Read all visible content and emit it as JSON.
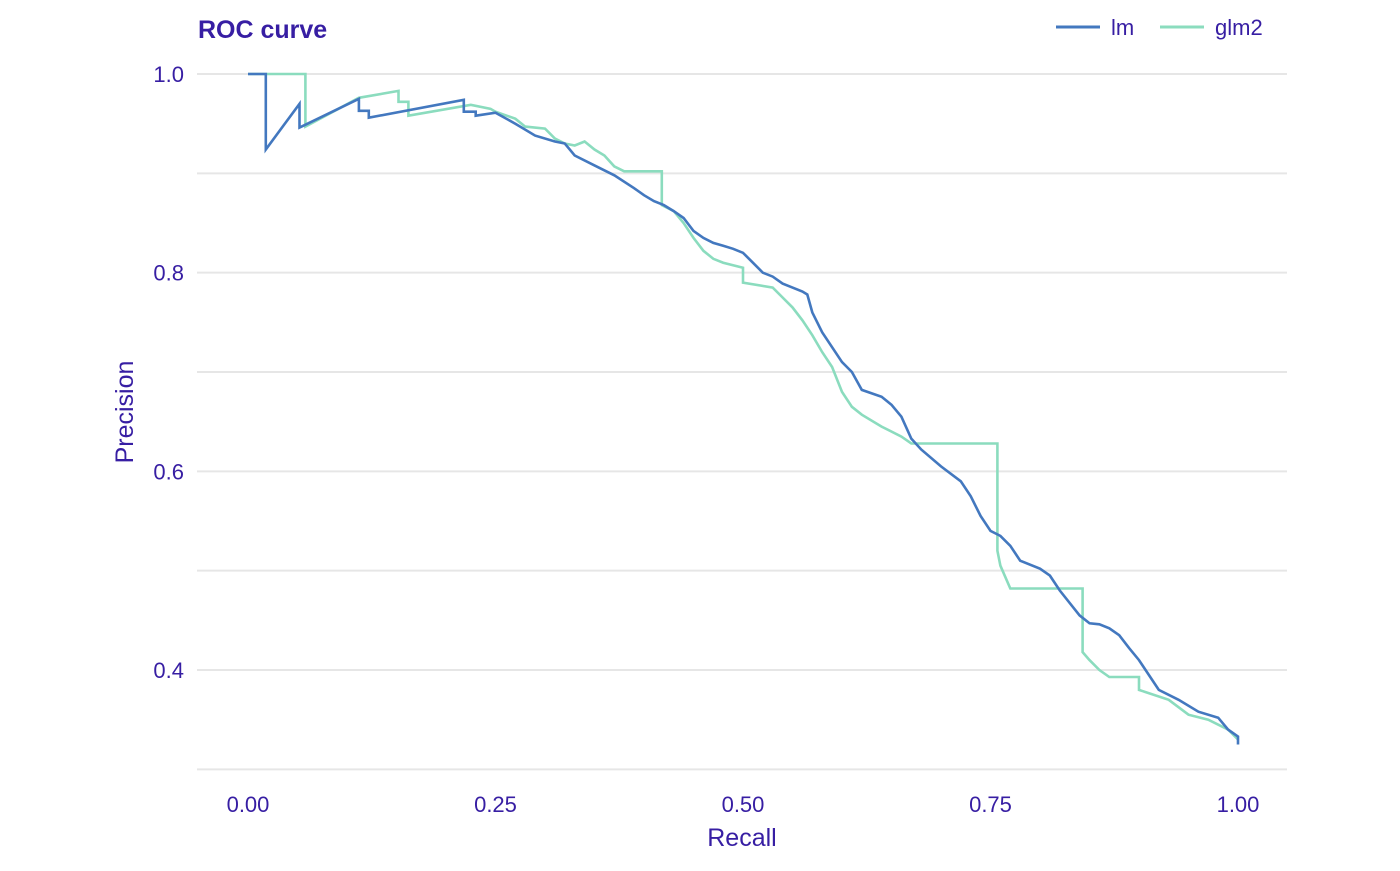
{
  "chart_data": {
    "type": "line",
    "title": "ROC curve",
    "xlabel": "Recall",
    "ylabel": "Precision",
    "xlim": [
      -0.05,
      1.05
    ],
    "ylim": [
      0.3,
      1.03
    ],
    "x_ticks": [
      0,
      0.25,
      0.5,
      0.75,
      1
    ],
    "x_tick_labels": [
      "0.00",
      "0.25",
      "0.50",
      "0.75",
      "1.00"
    ],
    "y_ticks": [
      0.4,
      0.6,
      0.8,
      1.0
    ],
    "y_tick_labels": [
      "0.4",
      "0.6",
      "0.8",
      "1.0"
    ],
    "y_minor_gridlines": [
      0.3,
      0.5,
      0.7,
      0.9
    ],
    "grid": "horizontal",
    "legend_position": "top-right",
    "colors": {
      "text": "#371ea3",
      "grid": "#e6e6e6"
    },
    "series": [
      {
        "name": "lm",
        "color": "#4378bf",
        "points": [
          [
            0.0,
            1.0
          ],
          [
            0.018,
            1.0
          ],
          [
            0.018,
            0.924
          ],
          [
            0.052,
            0.97
          ],
          [
            0.052,
            0.946
          ],
          [
            0.112,
            0.975
          ],
          [
            0.112,
            0.963
          ],
          [
            0.122,
            0.963
          ],
          [
            0.122,
            0.956
          ],
          [
            0.218,
            0.974
          ],
          [
            0.218,
            0.962
          ],
          [
            0.23,
            0.962
          ],
          [
            0.23,
            0.958
          ],
          [
            0.25,
            0.961
          ],
          [
            0.27,
            0.95
          ],
          [
            0.29,
            0.938
          ],
          [
            0.31,
            0.932
          ],
          [
            0.32,
            0.93
          ],
          [
            0.33,
            0.918
          ],
          [
            0.35,
            0.908
          ],
          [
            0.37,
            0.898
          ],
          [
            0.39,
            0.885
          ],
          [
            0.4,
            0.878
          ],
          [
            0.41,
            0.872
          ],
          [
            0.42,
            0.868
          ],
          [
            0.43,
            0.862
          ],
          [
            0.44,
            0.855
          ],
          [
            0.45,
            0.842
          ],
          [
            0.46,
            0.835
          ],
          [
            0.47,
            0.83
          ],
          [
            0.48,
            0.827
          ],
          [
            0.49,
            0.824
          ],
          [
            0.5,
            0.82
          ],
          [
            0.51,
            0.81
          ],
          [
            0.52,
            0.8
          ],
          [
            0.53,
            0.796
          ],
          [
            0.54,
            0.789
          ],
          [
            0.55,
            0.785
          ],
          [
            0.56,
            0.781
          ],
          [
            0.565,
            0.778
          ],
          [
            0.57,
            0.76
          ],
          [
            0.58,
            0.74
          ],
          [
            0.6,
            0.71
          ],
          [
            0.61,
            0.7
          ],
          [
            0.62,
            0.682
          ],
          [
            0.64,
            0.675
          ],
          [
            0.65,
            0.667
          ],
          [
            0.66,
            0.655
          ],
          [
            0.67,
            0.633
          ],
          [
            0.68,
            0.622
          ],
          [
            0.7,
            0.605
          ],
          [
            0.72,
            0.59
          ],
          [
            0.73,
            0.575
          ],
          [
            0.74,
            0.555
          ],
          [
            0.75,
            0.54
          ],
          [
            0.76,
            0.535
          ],
          [
            0.77,
            0.525
          ],
          [
            0.78,
            0.51
          ],
          [
            0.8,
            0.502
          ],
          [
            0.81,
            0.495
          ],
          [
            0.82,
            0.48
          ],
          [
            0.84,
            0.455
          ],
          [
            0.85,
            0.447
          ],
          [
            0.86,
            0.446
          ],
          [
            0.87,
            0.442
          ],
          [
            0.88,
            0.435
          ],
          [
            0.89,
            0.422
          ],
          [
            0.9,
            0.41
          ],
          [
            0.91,
            0.395
          ],
          [
            0.92,
            0.38
          ],
          [
            0.94,
            0.37
          ],
          [
            0.96,
            0.358
          ],
          [
            0.98,
            0.352
          ],
          [
            0.99,
            0.34
          ],
          [
            1.0,
            0.333
          ],
          [
            1.0,
            0.325
          ]
        ]
      },
      {
        "name": "glm2",
        "color": "#8bdcbe",
        "points": [
          [
            0.0,
            1.0
          ],
          [
            0.058,
            1.0
          ],
          [
            0.058,
            0.947
          ],
          [
            0.112,
            0.976
          ],
          [
            0.152,
            0.983
          ],
          [
            0.152,
            0.972
          ],
          [
            0.162,
            0.972
          ],
          [
            0.162,
            0.958
          ],
          [
            0.225,
            0.969
          ],
          [
            0.245,
            0.965
          ],
          [
            0.25,
            0.962
          ],
          [
            0.27,
            0.955
          ],
          [
            0.28,
            0.947
          ],
          [
            0.3,
            0.945
          ],
          [
            0.31,
            0.935
          ],
          [
            0.32,
            0.93
          ],
          [
            0.33,
            0.928
          ],
          [
            0.34,
            0.932
          ],
          [
            0.35,
            0.924
          ],
          [
            0.36,
            0.918
          ],
          [
            0.37,
            0.907
          ],
          [
            0.38,
            0.902
          ],
          [
            0.418,
            0.902
          ],
          [
            0.418,
            0.868
          ],
          [
            0.43,
            0.862
          ],
          [
            0.44,
            0.85
          ],
          [
            0.45,
            0.835
          ],
          [
            0.46,
            0.822
          ],
          [
            0.47,
            0.814
          ],
          [
            0.48,
            0.81
          ],
          [
            0.5,
            0.805
          ],
          [
            0.5,
            0.79
          ],
          [
            0.53,
            0.785
          ],
          [
            0.54,
            0.775
          ],
          [
            0.55,
            0.765
          ],
          [
            0.56,
            0.752
          ],
          [
            0.57,
            0.737
          ],
          [
            0.58,
            0.72
          ],
          [
            0.59,
            0.705
          ],
          [
            0.6,
            0.68
          ],
          [
            0.61,
            0.665
          ],
          [
            0.62,
            0.657
          ],
          [
            0.64,
            0.645
          ],
          [
            0.66,
            0.635
          ],
          [
            0.67,
            0.628
          ],
          [
            0.757,
            0.628
          ],
          [
            0.757,
            0.52
          ],
          [
            0.76,
            0.505
          ],
          [
            0.77,
            0.482
          ],
          [
            0.843,
            0.482
          ],
          [
            0.843,
            0.418
          ],
          [
            0.85,
            0.41
          ],
          [
            0.86,
            0.4
          ],
          [
            0.87,
            0.393
          ],
          [
            0.9,
            0.393
          ],
          [
            0.9,
            0.38
          ],
          [
            0.93,
            0.37
          ],
          [
            0.95,
            0.355
          ],
          [
            0.97,
            0.35
          ],
          [
            0.99,
            0.34
          ],
          [
            1.0,
            0.33
          ]
        ]
      }
    ]
  }
}
